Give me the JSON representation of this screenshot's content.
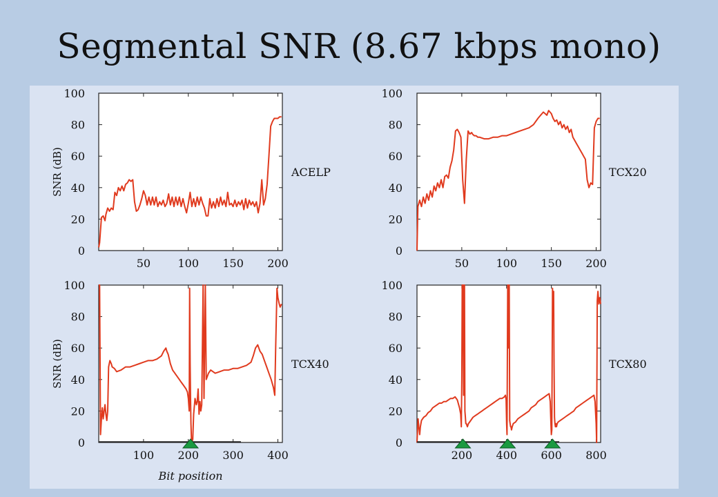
{
  "slide": {
    "title": "Segmental SNR (8.67 kbps mono)",
    "background": "#b8cce4",
    "panel_background": "#dae3f2",
    "line_color": "#e03a1e",
    "marker_color": "#1a9a40"
  },
  "chart_data": [
    {
      "type": "line",
      "name": "ACELP",
      "ylabel": "SNR (dB)",
      "xlabel": "",
      "xlim": [
        0,
        205
      ],
      "ylim": [
        0,
        100
      ],
      "xticks": [
        50,
        100,
        150,
        200
      ],
      "yticks": [
        0,
        20,
        40,
        60,
        80,
        100
      ],
      "markers": [],
      "x": [
        0,
        1,
        3,
        5,
        7,
        8,
        10,
        12,
        14,
        16,
        18,
        20,
        22,
        24,
        26,
        28,
        30,
        32,
        34,
        36,
        38,
        40,
        42,
        44,
        46,
        48,
        50,
        52,
        54,
        56,
        58,
        60,
        62,
        64,
        66,
        68,
        70,
        72,
        74,
        76,
        78,
        80,
        82,
        84,
        86,
        88,
        90,
        92,
        94,
        96,
        98,
        100,
        102,
        104,
        106,
        108,
        110,
        112,
        114,
        116,
        118,
        120,
        122,
        124,
        126,
        128,
        130,
        132,
        134,
        136,
        138,
        140,
        142,
        144,
        146,
        148,
        150,
        152,
        154,
        156,
        158,
        160,
        162,
        164,
        166,
        168,
        170,
        172,
        174,
        176,
        178,
        180,
        182,
        184,
        186,
        188,
        190,
        192,
        194,
        196,
        198,
        200,
        202,
        204
      ],
      "y": [
        2,
        5,
        21,
        22,
        19,
        23,
        27,
        25,
        27,
        26,
        37,
        35,
        40,
        38,
        41,
        38,
        42,
        43,
        45,
        44,
        45,
        31,
        25,
        26,
        29,
        33,
        38,
        35,
        29,
        34,
        29,
        34,
        29,
        34,
        28,
        31,
        29,
        32,
        28,
        30,
        36,
        29,
        34,
        28,
        34,
        29,
        34,
        28,
        33,
        28,
        24,
        30,
        37,
        28,
        33,
        28,
        34,
        29,
        34,
        30,
        27,
        22,
        22,
        33,
        27,
        31,
        27,
        33,
        28,
        34,
        29,
        32,
        28,
        37,
        29,
        30,
        28,
        32,
        28,
        31,
        29,
        32,
        26,
        33,
        27,
        32,
        29,
        31,
        28,
        31,
        24,
        30,
        45,
        29,
        33,
        42,
        60,
        79,
        82,
        84,
        84,
        84,
        85,
        85
      ]
    },
    {
      "type": "line",
      "name": "TCX20",
      "ylabel": "",
      "xlabel": "",
      "xlim": [
        0,
        205
      ],
      "ylim": [
        0,
        100
      ],
      "xticks": [
        50,
        100,
        150,
        200
      ],
      "yticks": [
        0,
        20,
        40,
        60,
        80,
        100
      ],
      "markers": [],
      "x": [
        0,
        1,
        3,
        5,
        7,
        9,
        11,
        13,
        15,
        17,
        19,
        21,
        23,
        25,
        27,
        29,
        31,
        33,
        35,
        37,
        39,
        41,
        43,
        45,
        47,
        49,
        51,
        53,
        55,
        57,
        59,
        61,
        62,
        64,
        66,
        68,
        70,
        75,
        80,
        85,
        90,
        95,
        100,
        105,
        110,
        115,
        120,
        125,
        130,
        135,
        138,
        141,
        143,
        145,
        147,
        150,
        152,
        154,
        156,
        158,
        160,
        162,
        164,
        166,
        168,
        170,
        172,
        174,
        176,
        178,
        180,
        182,
        184,
        186,
        188,
        190,
        192,
        194,
        196,
        198,
        200,
        202,
        204
      ],
      "y": [
        0,
        28,
        32,
        28,
        34,
        30,
        36,
        32,
        38,
        34,
        41,
        38,
        43,
        40,
        45,
        40,
        47,
        48,
        46,
        53,
        57,
        64,
        76,
        77,
        75,
        72,
        45,
        30,
        58,
        76,
        74,
        75,
        74,
        73,
        73,
        72,
        72,
        71,
        71,
        72,
        72,
        73,
        73,
        74,
        75,
        76,
        77,
        78,
        80,
        84,
        86,
        88,
        87,
        86,
        89,
        87,
        84,
        82,
        83,
        80,
        82,
        78,
        80,
        77,
        79,
        75,
        77,
        72,
        70,
        68,
        66,
        64,
        62,
        60,
        58,
        45,
        40,
        43,
        42,
        78,
        82,
        84,
        84
      ]
    },
    {
      "type": "line",
      "name": "TCX40",
      "ylabel": "SNR (dB)",
      "xlabel": "Bit position",
      "xlim": [
        0,
        410
      ],
      "ylim": [
        0,
        100
      ],
      "xticks": [
        100,
        200,
        300,
        400
      ],
      "yticks": [
        0,
        20,
        40,
        60,
        80,
        100
      ],
      "markers": [
        205
      ],
      "x": [
        0,
        2,
        4,
        6,
        8,
        10,
        12,
        14,
        16,
        18,
        20,
        22,
        25,
        28,
        30,
        35,
        40,
        50,
        60,
        70,
        80,
        90,
        100,
        110,
        120,
        130,
        140,
        145,
        150,
        152,
        155,
        160,
        165,
        170,
        175,
        180,
        185,
        190,
        195,
        198,
        200,
        202,
        203,
        204,
        205,
        206,
        207,
        208,
        210,
        212,
        215,
        218,
        220,
        222,
        224,
        226,
        228,
        230,
        233,
        235,
        238,
        240,
        245,
        250,
        260,
        270,
        280,
        290,
        300,
        310,
        320,
        330,
        340,
        345,
        350,
        355,
        360,
        365,
        370,
        375,
        380,
        385,
        390,
        393,
        395,
        398,
        400,
        403,
        405,
        408
      ],
      "y": [
        100,
        100,
        5,
        15,
        22,
        15,
        20,
        24,
        18,
        14,
        20,
        48,
        52,
        50,
        48,
        47,
        45,
        46,
        48,
        48,
        49,
        50,
        51,
        52,
        52,
        53,
        55,
        58,
        60,
        58,
        56,
        50,
        46,
        44,
        42,
        40,
        38,
        36,
        34,
        32,
        28,
        20,
        98,
        50,
        28,
        12,
        2,
        0,
        2,
        18,
        28,
        24,
        26,
        34,
        18,
        26,
        20,
        24,
        100,
        28,
        100,
        40,
        44,
        46,
        44,
        45,
        46,
        46,
        47,
        47,
        48,
        49,
        51,
        55,
        60,
        62,
        58,
        56,
        52,
        48,
        44,
        40,
        35,
        30,
        60,
        98,
        92,
        88,
        86,
        88
      ]
    },
    {
      "type": "line",
      "name": "TCX80",
      "ylabel": "",
      "xlabel": "",
      "xlim": [
        0,
        820
      ],
      "ylim": [
        0,
        100
      ],
      "xticks": [
        200,
        400,
        600,
        800
      ],
      "yticks": [
        0,
        20,
        40,
        60,
        80,
        100
      ],
      "markers": [
        205,
        405,
        605
      ],
      "x": [
        0,
        5,
        8,
        10,
        12,
        15,
        20,
        30,
        40,
        50,
        60,
        70,
        80,
        90,
        100,
        110,
        120,
        130,
        140,
        150,
        160,
        170,
        180,
        190,
        195,
        198,
        200,
        202,
        205,
        208,
        210,
        212,
        214,
        216,
        218,
        220,
        225,
        230,
        240,
        250,
        260,
        270,
        280,
        290,
        300,
        310,
        320,
        330,
        340,
        350,
        360,
        370,
        380,
        390,
        395,
        398,
        400,
        402,
        405,
        407,
        410,
        412,
        414,
        416,
        418,
        420,
        422,
        425,
        430,
        440,
        450,
        460,
        470,
        480,
        490,
        500,
        510,
        520,
        530,
        540,
        550,
        560,
        570,
        580,
        590,
        595,
        598,
        600,
        602,
        605,
        607,
        610,
        612,
        614,
        616,
        618,
        620,
        623,
        626,
        630,
        640,
        650,
        660,
        670,
        680,
        690,
        700,
        710,
        720,
        730,
        740,
        750,
        760,
        770,
        780,
        790,
        795,
        800,
        802,
        805,
        808,
        812,
        816,
        820
      ],
      "y": [
        0,
        15,
        10,
        8,
        5,
        10,
        14,
        16,
        17,
        19,
        20,
        22,
        23,
        24,
        25,
        25,
        26,
        26,
        27,
        28,
        28,
        29,
        27,
        22,
        18,
        10,
        40,
        100,
        100,
        30,
        100,
        100,
        20,
        16,
        12,
        12,
        10,
        12,
        14,
        16,
        17,
        18,
        19,
        20,
        21,
        22,
        23,
        24,
        25,
        26,
        27,
        28,
        28,
        29,
        30,
        27,
        12,
        5,
        100,
        60,
        100,
        100,
        14,
        12,
        10,
        10,
        8,
        10,
        12,
        13,
        15,
        16,
        17,
        18,
        19,
        20,
        22,
        23,
        24,
        26,
        27,
        28,
        29,
        30,
        31,
        26,
        12,
        5,
        8,
        98,
        90,
        96,
        50,
        16,
        12,
        10,
        12,
        10,
        12,
        13,
        14,
        15,
        16,
        17,
        18,
        19,
        20,
        22,
        23,
        24,
        25,
        26,
        27,
        28,
        29,
        30,
        26,
        12,
        0,
        90,
        96,
        88,
        92,
        88
      ]
    }
  ]
}
